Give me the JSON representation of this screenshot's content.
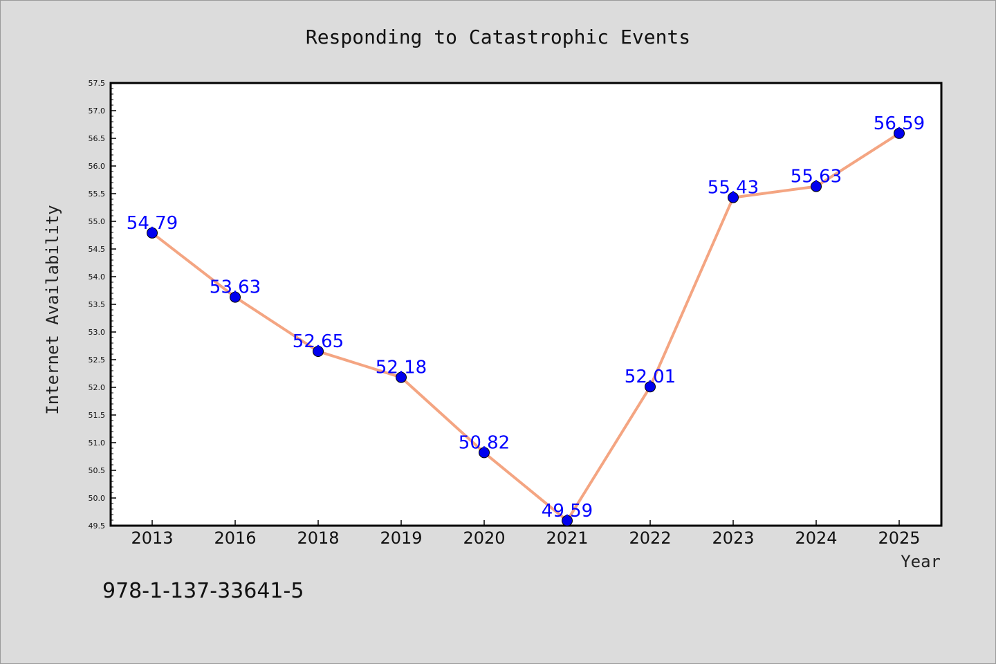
{
  "chart_data": {
    "type": "line",
    "title": "Responding to Catastrophic Events",
    "xlabel": "Year",
    "ylabel": "Internet Availability",
    "categories": [
      "2013",
      "2016",
      "2018",
      "2019",
      "2020",
      "2021",
      "2022",
      "2023",
      "2024",
      "2025"
    ],
    "values": [
      54.79,
      53.63,
      52.65,
      52.18,
      50.82,
      49.59,
      52.01,
      55.43,
      55.63,
      56.59
    ],
    "data_labels": [
      "54.79",
      "53.63",
      "52.65",
      "52.18",
      "50.82",
      "49.59",
      "52.01",
      "55.43",
      "55.63",
      "56.59"
    ],
    "ylim": [
      49.5,
      57.5
    ],
    "y_ticks": [
      "49.5",
      "50.0",
      "50.5",
      "51.0",
      "51.5",
      "52.0",
      "52.5",
      "53.0",
      "53.5",
      "54.0",
      "54.5",
      "55.0",
      "55.5",
      "56.0",
      "56.5",
      "57.0",
      "57.5"
    ],
    "line_color": "#f4a582",
    "marker_color": "#0000ee",
    "label_color": "#0000ff",
    "grid": false,
    "legend": "none"
  },
  "footer": {
    "isbn": "978-1-137-33641-5"
  }
}
